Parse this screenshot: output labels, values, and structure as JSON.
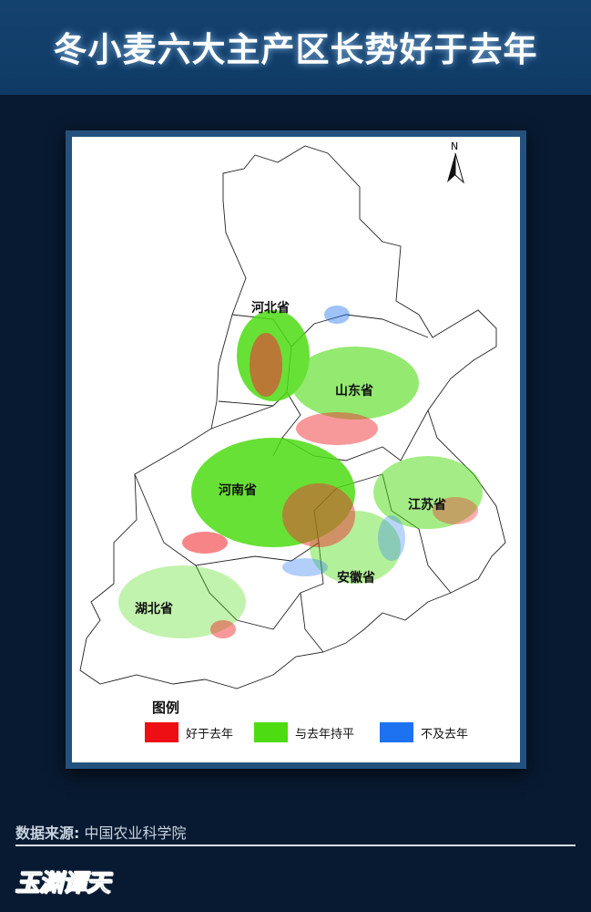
{
  "title": "冬小麦六大主产区长势好于去年",
  "map": {
    "north_label": "N",
    "provinces": [
      "河北省",
      "山东省",
      "河南省",
      "江苏省",
      "安徽省",
      "湖北省"
    ],
    "legend": {
      "title": "图例",
      "items": [
        {
          "label": "好于去年",
          "color": "#ee0f14"
        },
        {
          "label": "与去年持平",
          "color": "#4ddc12"
        },
        {
          "label": "不及去年",
          "color": "#1d72f0"
        }
      ]
    }
  },
  "footer": {
    "source_label": "数据来源:",
    "source_value": "中国农业科学院",
    "logo": "玉渊谭天"
  }
}
